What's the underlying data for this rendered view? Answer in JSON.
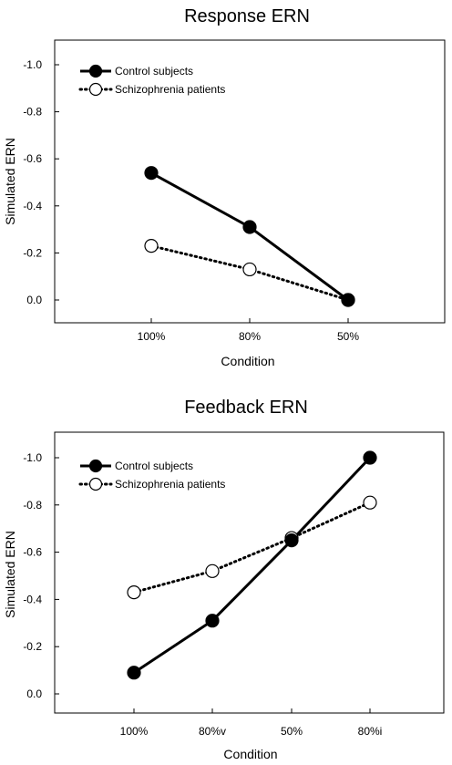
{
  "chart_data": [
    {
      "type": "line",
      "title": "Response ERN",
      "xlabel": "Condition",
      "ylabel": "Simulated ERN",
      "categories": [
        "100%",
        "80%",
        "50%"
      ],
      "yticks": [
        "-1.0",
        "-0.8",
        "-0.6",
        "-0.4",
        "-0.2",
        "0.0"
      ],
      "ylim": [
        0.1,
        -1.1
      ],
      "y_inverted": true,
      "legend_position": "top-left",
      "series": [
        {
          "name": "Control subjects",
          "values": [
            -0.54,
            -0.31,
            0.0
          ],
          "style": "solid",
          "marker": "filled-circle"
        },
        {
          "name": "Schizophrenia patients",
          "values": [
            -0.23,
            -0.13,
            0.0
          ],
          "style": "dotted",
          "marker": "open-circle"
        }
      ]
    },
    {
      "type": "line",
      "title": "Feedback ERN",
      "xlabel": "Condition",
      "ylabel": "Simulated ERN",
      "categories": [
        "100%",
        "80%v",
        "50%",
        "80%i"
      ],
      "yticks": [
        "-1.0",
        "-0.8",
        "-0.6",
        "-0.4",
        "-0.2",
        "0.0"
      ],
      "ylim": [
        0.1,
        -1.1
      ],
      "y_inverted": true,
      "legend_position": "top-left",
      "series": [
        {
          "name": "Control subjects",
          "values": [
            -0.09,
            -0.31,
            -0.65,
            -1.0
          ],
          "style": "solid",
          "marker": "filled-circle"
        },
        {
          "name": "Schizophrenia patients",
          "values": [
            -0.43,
            -0.52,
            -0.66,
            -0.81
          ],
          "style": "dotted",
          "marker": "open-circle"
        }
      ]
    }
  ]
}
